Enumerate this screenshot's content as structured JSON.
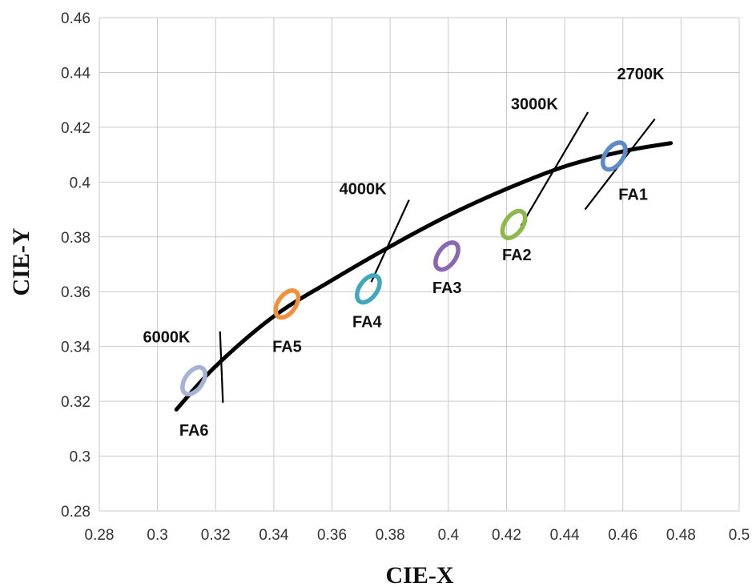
{
  "chart_data": {
    "type": "scatter",
    "title": "",
    "xlabel": "CIE-X",
    "ylabel": "CIE-Y",
    "xlim": [
      0.28,
      0.5
    ],
    "ylim": [
      0.28,
      0.46
    ],
    "xticks": [
      "0.28",
      "0.3",
      "0.32",
      "0.34",
      "0.36",
      "0.38",
      "0.4",
      "0.42",
      "0.44",
      "0.46",
      "0.48",
      "0.5"
    ],
    "yticks": [
      "0.28",
      "0.3",
      "0.32",
      "0.34",
      "0.36",
      "0.38",
      "0.4",
      "0.42",
      "0.44",
      "0.46"
    ],
    "grid": true,
    "legend": "none",
    "curve": {
      "x": [
        0.3065,
        0.32,
        0.34,
        0.36,
        0.38,
        0.4,
        0.42,
        0.44,
        0.46,
        0.4765
      ],
      "y": [
        0.317,
        0.3328,
        0.351,
        0.3642,
        0.3765,
        0.3878,
        0.3975,
        0.4057,
        0.4112,
        0.4142
      ],
      "color": "#000000"
    },
    "isotherms": [
      {
        "label": "2700K",
        "x1": 0.447,
        "y1": 0.39,
        "x2": 0.471,
        "y2": 0.423,
        "label_x": 0.458,
        "label_y": 0.4375
      },
      {
        "label": "3000K",
        "x1": 0.425,
        "y1": 0.384,
        "x2": 0.448,
        "y2": 0.4255,
        "label_x": 0.4215,
        "label_y": 0.4265
      },
      {
        "label": "4000K",
        "x1": 0.3735,
        "y1": 0.3635,
        "x2": 0.3865,
        "y2": 0.3935,
        "label_x": 0.3625,
        "label_y": 0.3955
      },
      {
        "label": "6000K",
        "x1": 0.3215,
        "y1": 0.3455,
        "x2": 0.3225,
        "y2": 0.3195,
        "label_x": 0.295,
        "label_y": 0.3415
      }
    ],
    "series": [
      {
        "name": "FA1",
        "x": 0.457,
        "y": 0.4095,
        "color": "#5B8CC7",
        "label_x": 0.4585,
        "label_y": 0.3935
      },
      {
        "name": "FA2",
        "x": 0.4225,
        "y": 0.3845,
        "color": "#8DB84A",
        "label_x": 0.4185,
        "label_y": 0.3715
      },
      {
        "name": "FA3",
        "x": 0.3995,
        "y": 0.373,
        "color": "#8A68B0",
        "label_x": 0.3945,
        "label_y": 0.3595
      },
      {
        "name": "FA4",
        "x": 0.3725,
        "y": 0.361,
        "color": "#3FA8BD",
        "label_x": 0.367,
        "label_y": 0.347
      },
      {
        "name": "FA5",
        "x": 0.3445,
        "y": 0.3555,
        "color": "#F0903A",
        "label_x": 0.3395,
        "label_y": 0.338
      },
      {
        "name": "FA6",
        "x": 0.3125,
        "y": 0.3275,
        "color": "#A5B3D6",
        "label_x": 0.3075,
        "label_y": 0.3075
      }
    ]
  }
}
